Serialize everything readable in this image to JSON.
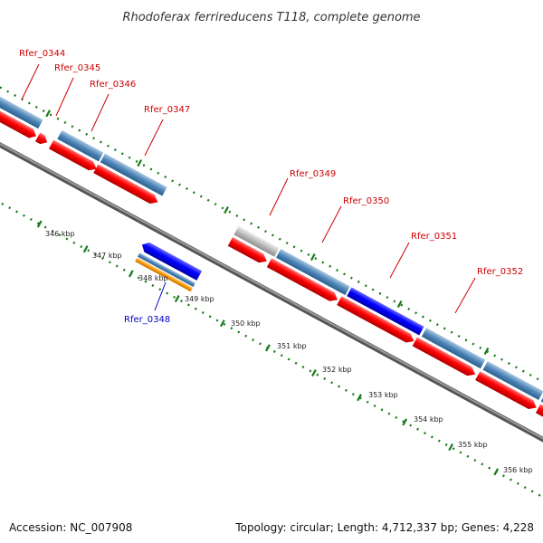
{
  "title": "Rhodoferax ferrireducens T118, complete genome",
  "footer": {
    "accession": "Accession: NC_007908",
    "topology": "Topology: circular; Length: 4,712,337 bp; Genes: 4,228"
  },
  "colors": {
    "label_red": "#cc0000",
    "label_blue": "#0000cc",
    "gene_red": "#ff0000",
    "gene_steelblue": "#4d86b8",
    "gene_blue": "#0000ff",
    "gene_orange": "#ff9900",
    "gene_gray": "#bbbbbb",
    "backbone": "#808080",
    "tick_green": "#1a7a1a"
  },
  "gene_labels": [
    {
      "name": "Rfer_0344",
      "color": "red"
    },
    {
      "name": "Rfer_0345",
      "color": "red"
    },
    {
      "name": "Rfer_0346",
      "color": "red"
    },
    {
      "name": "Rfer_0347",
      "color": "red"
    },
    {
      "name": "Rfer_0348",
      "color": "blue"
    },
    {
      "name": "Rfer_0349",
      "color": "red"
    },
    {
      "name": "Rfer_0350",
      "color": "red"
    },
    {
      "name": "Rfer_0351",
      "color": "red"
    },
    {
      "name": "Rfer_0352",
      "color": "red"
    }
  ],
  "kbp_labels": [
    "346 kbp",
    "347 kbp",
    "348 kbp",
    "349 kbp",
    "350 kbp",
    "351 kbp",
    "352 kbp",
    "353 kbp",
    "354 kbp",
    "355 kbp",
    "356 kbp"
  ]
}
